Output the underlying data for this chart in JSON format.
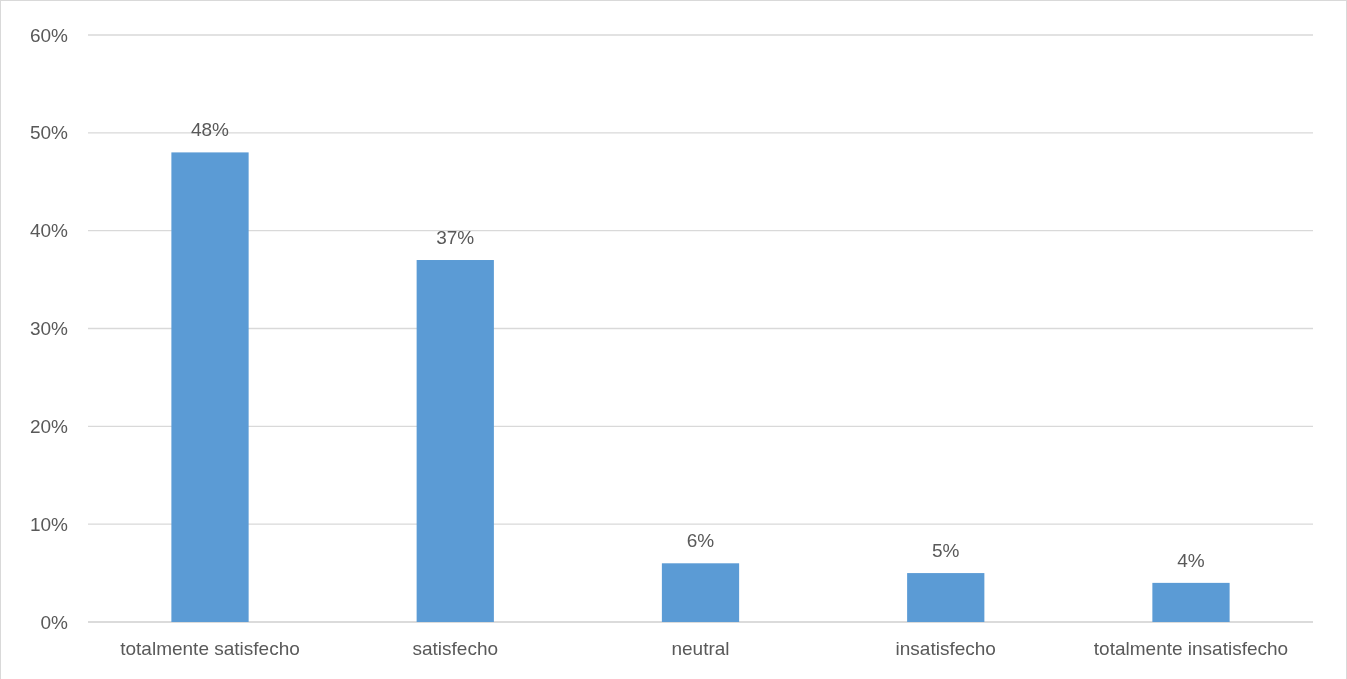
{
  "chart_data": {
    "type": "bar",
    "categories": [
      "totalmente satisfecho",
      "satisfecho",
      "neutral",
      "insatisfecho",
      "totalmente insatisfecho"
    ],
    "values": [
      48,
      37,
      6,
      5,
      4
    ],
    "color": "#5b9bd5",
    "value_labels": [
      "48%",
      "37%",
      "6%",
      "5%",
      "4%"
    ],
    "ylim": [
      0,
      60
    ],
    "yticks": [
      {
        "value": 0,
        "label": "0%"
      },
      {
        "value": 10,
        "label": "10%"
      },
      {
        "value": 20,
        "label": "20%"
      },
      {
        "value": 30,
        "label": "30%"
      },
      {
        "value": 40,
        "label": "40%"
      },
      {
        "value": 50,
        "label": "50%"
      },
      {
        "value": 60,
        "label": "60%"
      }
    ],
    "grid": "y"
  }
}
